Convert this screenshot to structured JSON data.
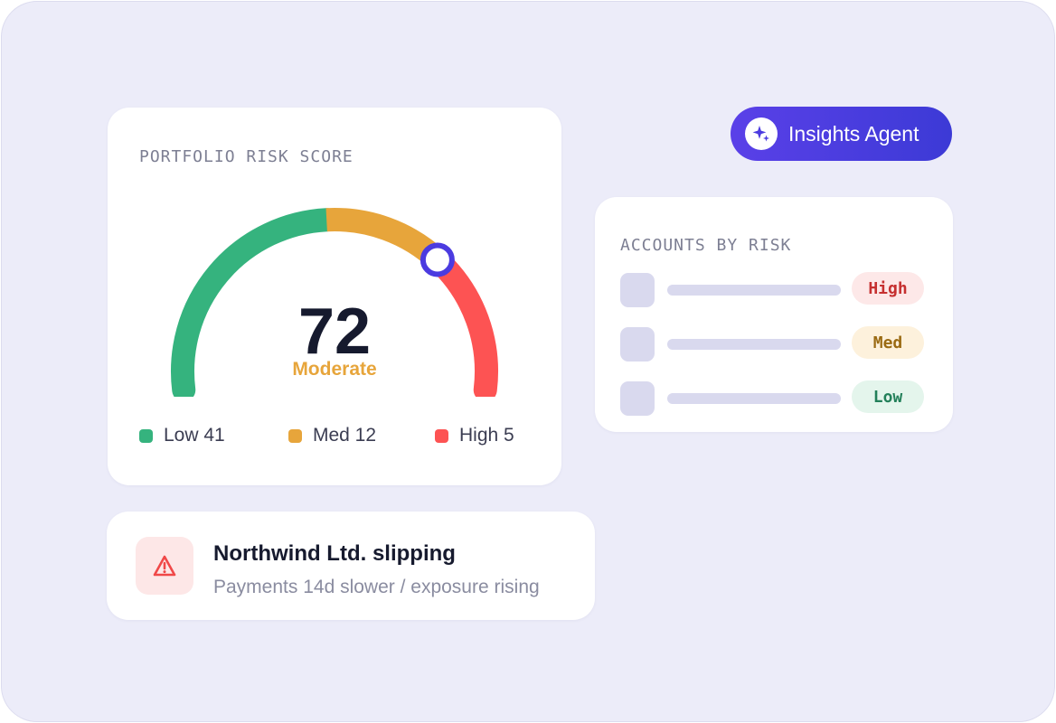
{
  "colors": {
    "low": "#35b37e",
    "med": "#e7a53b",
    "high": "#fd5353",
    "accent": "#4b3be0"
  },
  "risk_card": {
    "title": "PORTFOLIO RISK SCORE",
    "score": "72",
    "score_value": 72,
    "level": "Moderate",
    "legend": [
      {
        "label": "Low 41",
        "color": "#35b37e"
      },
      {
        "label": "Med 12",
        "color": "#e7a53b"
      },
      {
        "label": "High 5",
        "color": "#fd5353"
      }
    ]
  },
  "agent_button": {
    "label": "Insights Agent",
    "icon": "sparkle-icon"
  },
  "accounts_card": {
    "title": "ACCOUNTS BY RISK",
    "rows": [
      {
        "badge": "High",
        "badge_bg": "#fde8e8",
        "badge_fg": "#c63030"
      },
      {
        "badge": "Med",
        "badge_bg": "#fdf1dc",
        "badge_fg": "#9a6a12"
      },
      {
        "badge": "Low",
        "badge_bg": "#e4f5ec",
        "badge_fg": "#23805a"
      }
    ]
  },
  "alert": {
    "icon": "warning-icon",
    "title": "Northwind Ltd. slipping",
    "subtitle": "Payments 14d slower / exposure rising"
  }
}
